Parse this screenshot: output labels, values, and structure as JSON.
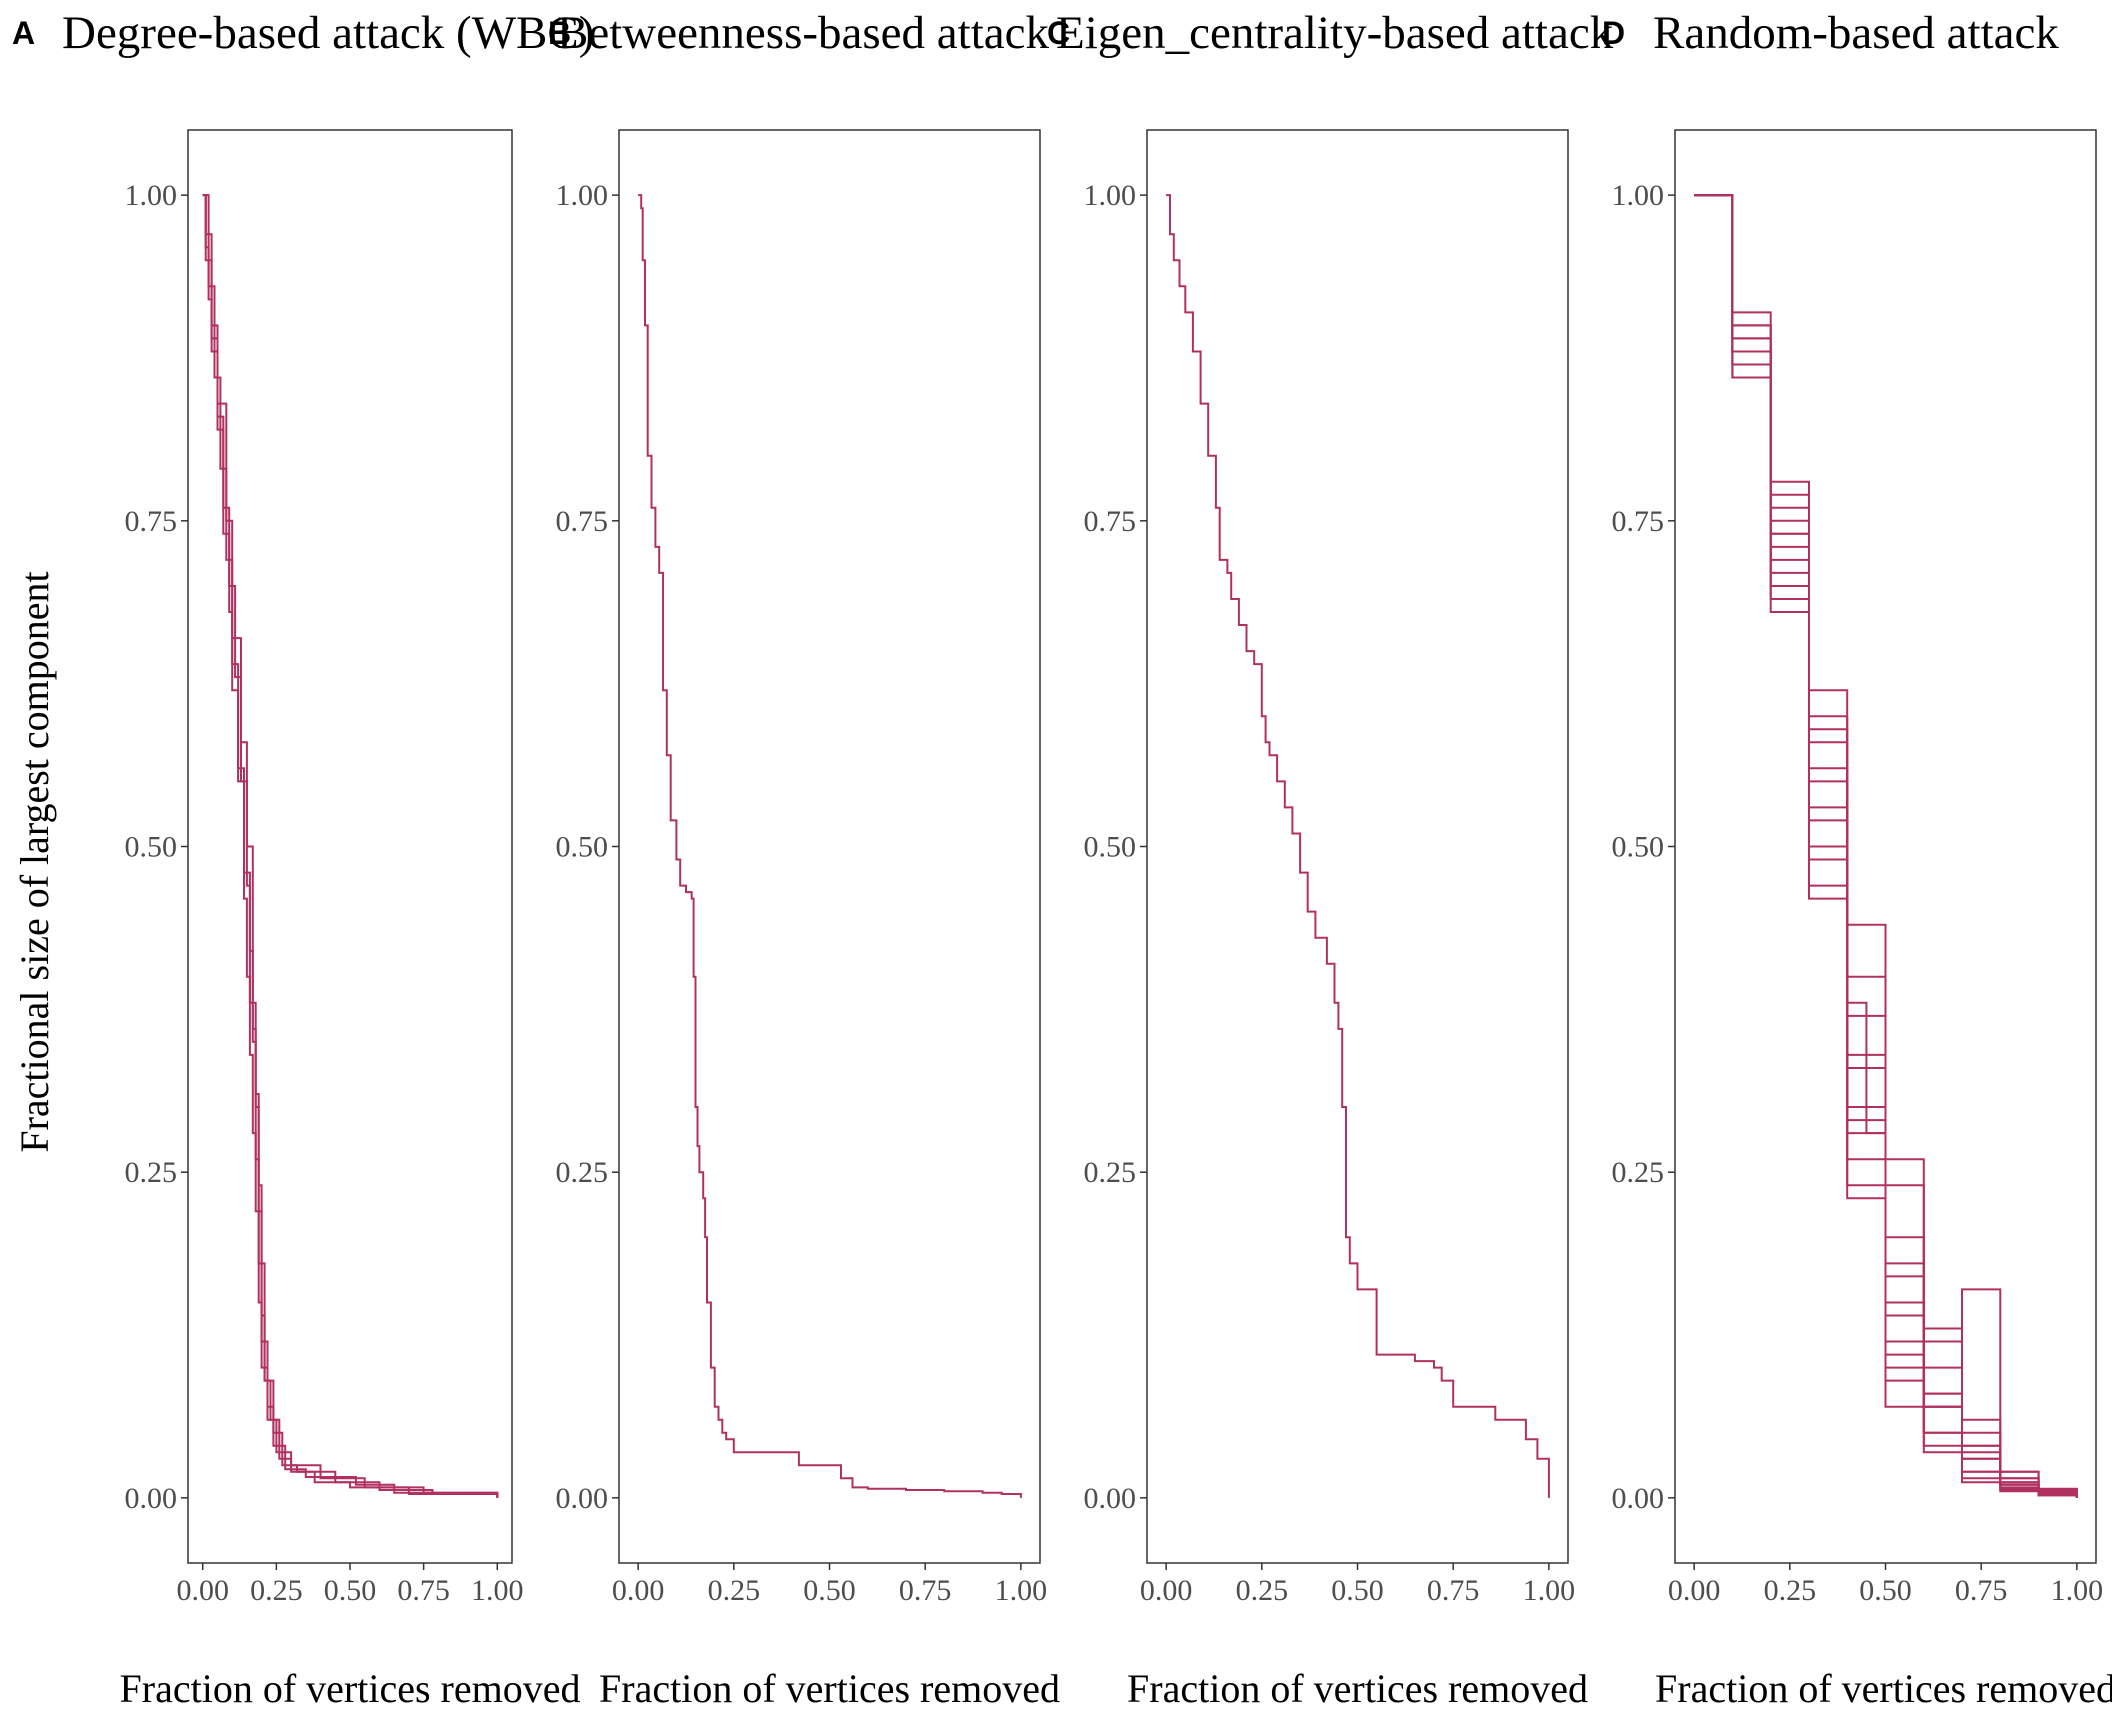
{
  "figure": {
    "ylabel": "Fractional size of largest component",
    "line_color": "#b03060"
  },
  "chart_data": [
    {
      "panel": "A",
      "type": "line",
      "title": "Degree-based attack (WBC)",
      "xlabel": "Fraction of vertices removed",
      "ylabel": "Fractional size of largest component",
      "xlim": [
        0,
        1
      ],
      "ylim": [
        -0.05,
        1.05
      ],
      "xticks": [
        "0.00",
        "0.25",
        "0.50",
        "0.75",
        "1.00"
      ],
      "yticks": [
        "0.00",
        "0.25",
        "0.50",
        "0.75",
        "1.00"
      ],
      "grid": false,
      "series": [
        {
          "x": [
            0.0,
            0.01,
            0.02,
            0.03,
            0.05,
            0.07,
            0.09,
            0.1,
            0.12,
            0.14,
            0.15,
            0.16,
            0.17,
            0.18,
            0.19,
            0.2,
            0.22,
            0.25,
            0.3,
            0.4,
            0.55,
            0.75,
            1.0
          ],
          "y": [
            1.0,
            0.96,
            0.92,
            0.88,
            0.82,
            0.74,
            0.68,
            0.62,
            0.55,
            0.46,
            0.4,
            0.34,
            0.28,
            0.22,
            0.15,
            0.1,
            0.06,
            0.035,
            0.025,
            0.015,
            0.008,
            0.004,
            0.0
          ]
        },
        {
          "x": [
            0.0,
            0.01,
            0.03,
            0.05,
            0.07,
            0.09,
            0.11,
            0.13,
            0.15,
            0.16,
            0.17,
            0.18,
            0.19,
            0.21,
            0.24,
            0.27,
            0.32,
            0.45,
            0.6,
            0.78,
            1.0
          ],
          "y": [
            1.0,
            0.95,
            0.89,
            0.83,
            0.76,
            0.7,
            0.63,
            0.55,
            0.47,
            0.42,
            0.35,
            0.26,
            0.18,
            0.09,
            0.05,
            0.025,
            0.02,
            0.012,
            0.006,
            0.003,
            0.0
          ]
        },
        {
          "x": [
            0.0,
            0.02,
            0.04,
            0.06,
            0.08,
            0.1,
            0.12,
            0.14,
            0.16,
            0.18,
            0.19,
            0.2,
            0.21,
            0.23,
            0.26,
            0.3,
            0.38,
            0.5,
            0.7,
            1.0
          ],
          "y": [
            1.0,
            0.93,
            0.86,
            0.79,
            0.72,
            0.64,
            0.56,
            0.48,
            0.38,
            0.3,
            0.22,
            0.14,
            0.09,
            0.06,
            0.03,
            0.02,
            0.012,
            0.008,
            0.003,
            0.0
          ]
        },
        {
          "x": [
            0.0,
            0.01,
            0.03,
            0.05,
            0.08,
            0.1,
            0.13,
            0.15,
            0.17,
            0.18,
            0.19,
            0.2,
            0.22,
            0.24,
            0.28,
            0.35,
            0.52,
            0.65,
            1.0
          ],
          "y": [
            1.0,
            0.97,
            0.9,
            0.84,
            0.75,
            0.66,
            0.58,
            0.5,
            0.36,
            0.31,
            0.24,
            0.12,
            0.07,
            0.04,
            0.022,
            0.016,
            0.01,
            0.004,
            0.0
          ]
        }
      ]
    },
    {
      "panel": "B",
      "type": "line",
      "title": "Betweenness-based attack",
      "xlabel": "Fraction of vertices removed",
      "ylabel": "",
      "xlim": [
        0,
        1
      ],
      "ylim": [
        -0.05,
        1.05
      ],
      "xticks": [
        "0.00",
        "0.25",
        "0.50",
        "0.75",
        "1.00"
      ],
      "yticks": [
        "0.00",
        "0.25",
        "0.50",
        "0.75",
        "1.00"
      ],
      "grid": false,
      "series": [
        {
          "x": [
            0.0,
            0.008,
            0.012,
            0.018,
            0.025,
            0.035,
            0.045,
            0.055,
            0.065,
            0.075,
            0.085,
            0.1,
            0.11,
            0.125,
            0.14,
            0.145,
            0.15,
            0.155,
            0.16,
            0.17,
            0.175,
            0.18,
            0.19,
            0.2,
            0.21,
            0.22,
            0.23,
            0.25,
            0.28,
            0.3,
            0.35,
            0.42,
            0.5,
            0.53,
            0.56,
            0.6,
            0.7,
            0.8,
            0.9,
            0.95,
            1.0
          ],
          "y": [
            1.0,
            0.99,
            0.95,
            0.9,
            0.8,
            0.76,
            0.73,
            0.71,
            0.62,
            0.57,
            0.52,
            0.49,
            0.47,
            0.465,
            0.46,
            0.4,
            0.3,
            0.27,
            0.25,
            0.23,
            0.2,
            0.15,
            0.1,
            0.07,
            0.06,
            0.05,
            0.045,
            0.035,
            0.035,
            0.035,
            0.035,
            0.025,
            0.025,
            0.015,
            0.008,
            0.007,
            0.006,
            0.005,
            0.004,
            0.003,
            0.0
          ]
        }
      ]
    },
    {
      "panel": "C",
      "type": "line",
      "title": "Eigen_centrality-based attack",
      "xlabel": "Fraction of vertices removed",
      "ylabel": "",
      "xlim": [
        0,
        1
      ],
      "ylim": [
        -0.05,
        1.05
      ],
      "xticks": [
        "0.00",
        "0.25",
        "0.50",
        "0.75",
        "1.00"
      ],
      "yticks": [
        "0.00",
        "0.25",
        "0.50",
        "0.75",
        "1.00"
      ],
      "grid": false,
      "series": [
        {
          "x": [
            0.0,
            0.01,
            0.02,
            0.035,
            0.05,
            0.07,
            0.09,
            0.11,
            0.13,
            0.14,
            0.16,
            0.17,
            0.19,
            0.21,
            0.23,
            0.25,
            0.26,
            0.27,
            0.29,
            0.31,
            0.33,
            0.35,
            0.37,
            0.39,
            0.42,
            0.44,
            0.45,
            0.46,
            0.47,
            0.48,
            0.5,
            0.52,
            0.55,
            0.63,
            0.65,
            0.7,
            0.72,
            0.75,
            0.82,
            0.86,
            0.94,
            0.97,
            1.0
          ],
          "y": [
            1.0,
            0.97,
            0.95,
            0.93,
            0.91,
            0.88,
            0.84,
            0.8,
            0.76,
            0.72,
            0.71,
            0.69,
            0.67,
            0.65,
            0.64,
            0.6,
            0.58,
            0.57,
            0.55,
            0.53,
            0.51,
            0.48,
            0.45,
            0.43,
            0.41,
            0.38,
            0.36,
            0.3,
            0.2,
            0.18,
            0.16,
            0.16,
            0.11,
            0.11,
            0.105,
            0.1,
            0.09,
            0.07,
            0.07,
            0.06,
            0.045,
            0.03,
            0.0
          ]
        }
      ]
    },
    {
      "panel": "D",
      "type": "line",
      "title": "Random-based attack",
      "xlabel": "Fraction of vertices removed",
      "ylabel": "",
      "xlim": [
        0,
        1
      ],
      "ylim": [
        -0.05,
        1.05
      ],
      "xticks": [
        "0.00",
        "0.25",
        "0.50",
        "0.75",
        "1.00"
      ],
      "yticks": [
        "0.00",
        "0.25",
        "0.50",
        "0.75",
        "1.00"
      ],
      "grid": false,
      "series": [
        {
          "x": [
            0.0,
            0.1,
            0.2,
            0.3,
            0.4,
            0.5,
            0.6,
            0.7,
            0.8,
            0.9,
            1.0
          ],
          "y": [
            1.0,
            0.88,
            0.74,
            0.56,
            0.34,
            0.18,
            0.08,
            0.03,
            0.012,
            0.004,
            0.0
          ]
        },
        {
          "x": [
            0.0,
            0.1,
            0.2,
            0.3,
            0.4,
            0.5,
            0.6,
            0.7,
            0.8,
            0.9,
            1.0
          ],
          "y": [
            1.0,
            0.87,
            0.71,
            0.5,
            0.28,
            0.12,
            0.05,
            0.02,
            0.008,
            0.003,
            0.0
          ]
        },
        {
          "x": [
            0.0,
            0.1,
            0.2,
            0.3,
            0.4,
            0.5,
            0.6,
            0.7,
            0.8,
            0.9,
            1.0
          ],
          "y": [
            1.0,
            0.9,
            0.77,
            0.6,
            0.4,
            0.24,
            0.12,
            0.05,
            0.02,
            0.006,
            0.0
          ]
        },
        {
          "x": [
            0.0,
            0.1,
            0.2,
            0.3,
            0.4,
            0.5,
            0.6,
            0.7,
            0.8,
            0.9,
            1.0
          ],
          "y": [
            1.0,
            0.86,
            0.69,
            0.47,
            0.24,
            0.1,
            0.04,
            0.015,
            0.006,
            0.002,
            0.0
          ]
        },
        {
          "x": [
            0.0,
            0.1,
            0.2,
            0.3,
            0.4,
            0.5,
            0.6,
            0.7,
            0.8,
            0.9,
            1.0
          ],
          "y": [
            1.0,
            0.89,
            0.75,
            0.58,
            0.37,
            0.2,
            0.1,
            0.04,
            0.015,
            0.005,
            0.0
          ]
        },
        {
          "x": [
            0.0,
            0.1,
            0.2,
            0.3,
            0.4,
            0.5,
            0.6,
            0.7,
            0.8,
            0.9,
            1.0
          ],
          "y": [
            1.0,
            0.88,
            0.72,
            0.53,
            0.3,
            0.15,
            0.07,
            0.03,
            0.01,
            0.004,
            0.0
          ]
        },
        {
          "x": [
            0.0,
            0.1,
            0.2,
            0.3,
            0.4,
            0.5,
            0.6,
            0.7,
            0.8,
            0.9,
            1.0
          ],
          "y": [
            1.0,
            0.91,
            0.78,
            0.62,
            0.44,
            0.26,
            0.13,
            0.06,
            0.02,
            0.007,
            0.0
          ]
        },
        {
          "x": [
            0.0,
            0.1,
            0.2,
            0.3,
            0.4,
            0.5,
            0.6,
            0.7,
            0.8,
            0.9,
            1.0
          ],
          "y": [
            1.0,
            0.87,
            0.7,
            0.49,
            0.26,
            0.11,
            0.05,
            0.02,
            0.007,
            0.002,
            0.0
          ]
        },
        {
          "x": [
            0.0,
            0.1,
            0.2,
            0.3,
            0.4,
            0.5,
            0.6,
            0.7,
            0.8,
            0.9,
            1.0
          ],
          "y": [
            1.0,
            0.89,
            0.74,
            0.55,
            0.33,
            0.17,
            0.08,
            0.035,
            0.012,
            0.004,
            0.0
          ]
        },
        {
          "x": [
            0.0,
            0.1,
            0.2,
            0.3,
            0.4,
            0.5,
            0.6,
            0.7,
            0.8,
            0.9,
            1.0
          ],
          "y": [
            1.0,
            0.88,
            0.73,
            0.52,
            0.29,
            0.14,
            0.07,
            0.16,
            0.01,
            0.003,
            0.0
          ]
        },
        {
          "x": [
            0.0,
            0.1,
            0.2,
            0.3,
            0.4,
            0.45,
            0.5,
            0.6,
            0.7,
            0.8,
            0.9,
            1.0
          ],
          "y": [
            1.0,
            0.9,
            0.76,
            0.59,
            0.38,
            0.28,
            0.07,
            0.07,
            0.04,
            0.015,
            0.005,
            0.0
          ]
        },
        {
          "x": [
            0.0,
            0.1,
            0.2,
            0.3,
            0.4,
            0.5,
            0.6,
            0.7,
            0.8,
            0.9,
            1.0
          ],
          "y": [
            1.0,
            0.86,
            0.68,
            0.46,
            0.23,
            0.09,
            0.035,
            0.012,
            0.005,
            0.002,
            0.0
          ]
        }
      ]
    }
  ]
}
